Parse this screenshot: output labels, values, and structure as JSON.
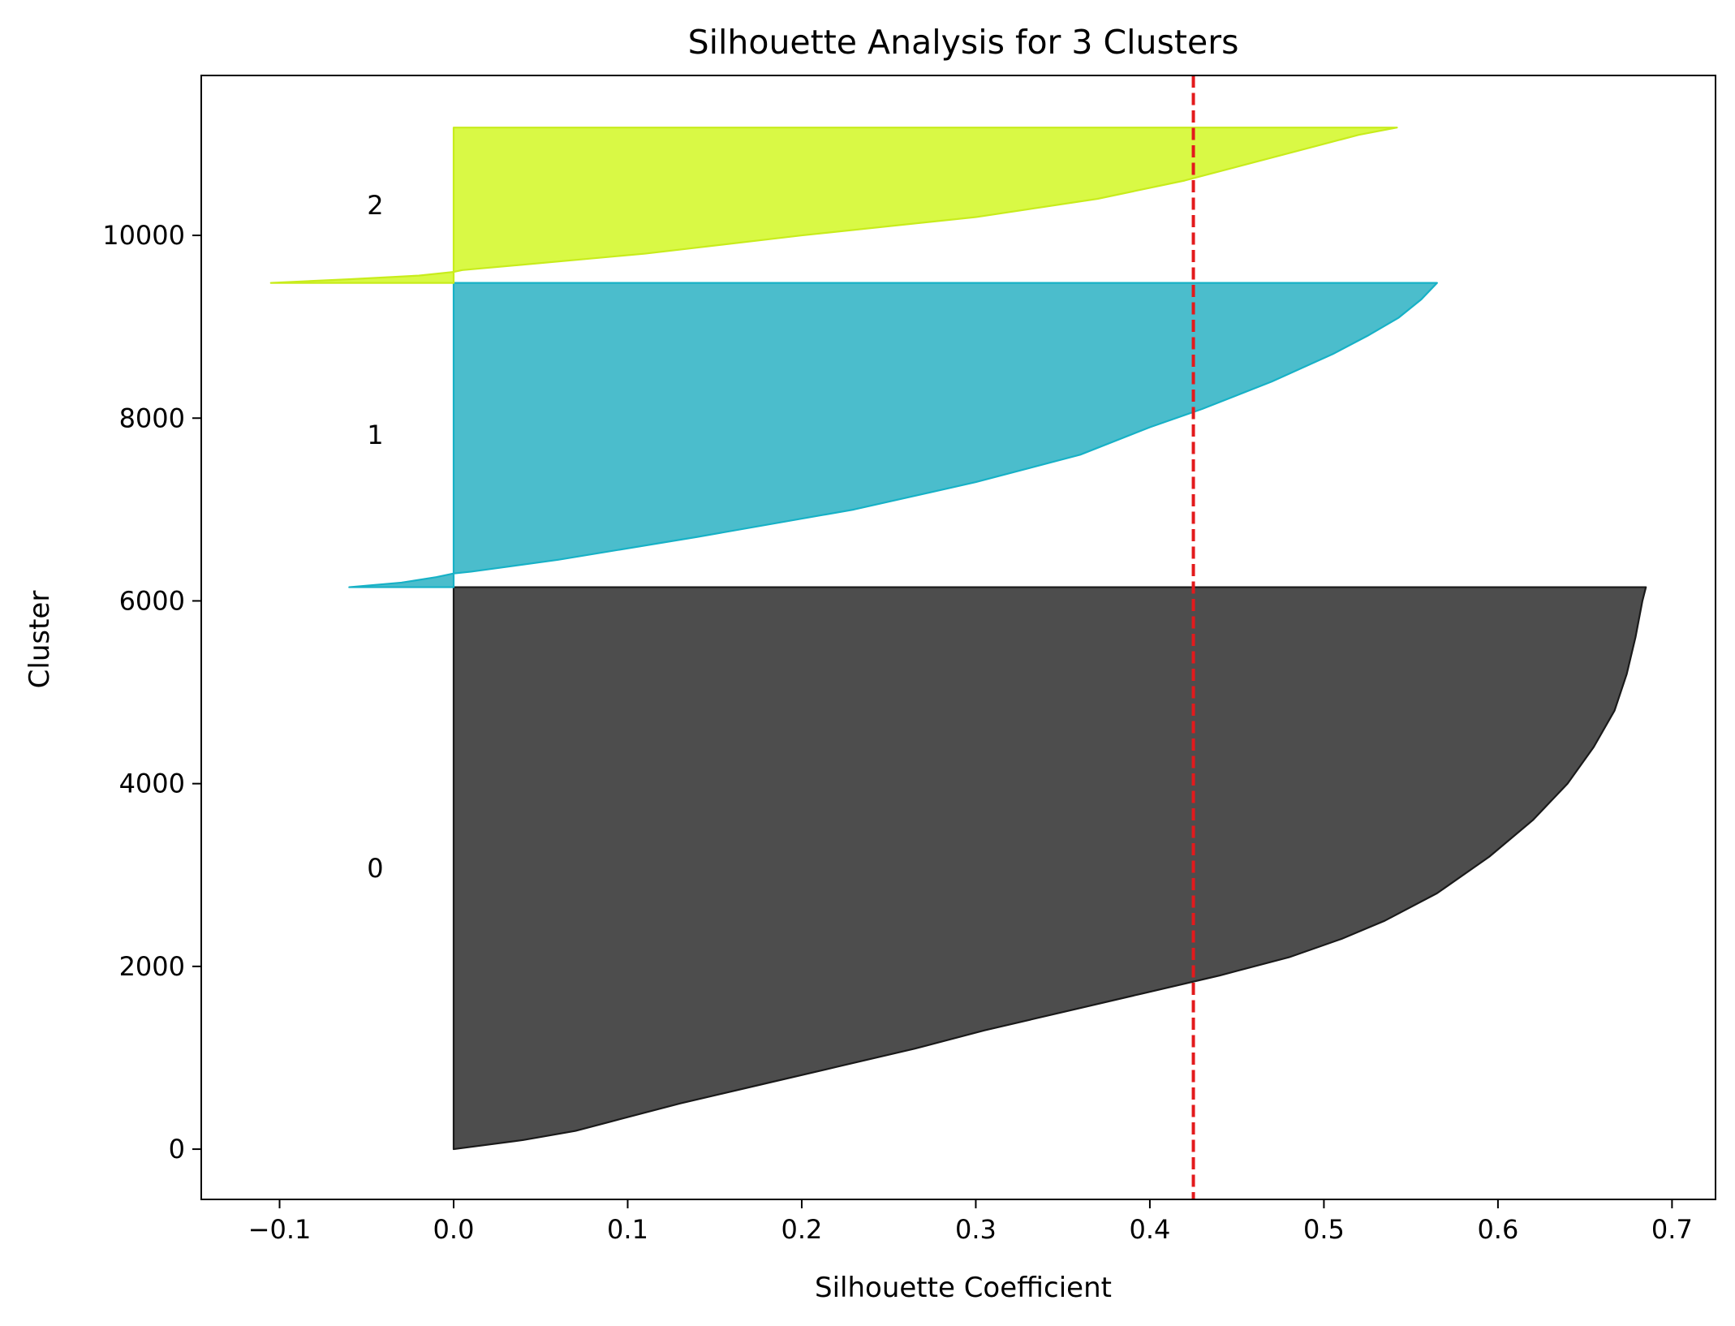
{
  "chart_data": {
    "type": "area",
    "title": "Silhouette Analysis for 3 Clusters",
    "xlabel": "Silhouette Coefficient",
    "ylabel": "Cluster",
    "xlim": [
      -0.145,
      0.725
    ],
    "ylim": [
      -550,
      11750
    ],
    "x_ticks": [
      -0.1,
      0.0,
      0.1,
      0.2,
      0.3,
      0.4,
      0.5,
      0.6,
      0.7
    ],
    "x_tick_labels": [
      "−0.1",
      "0.0",
      "0.1",
      "0.2",
      "0.3",
      "0.4",
      "0.5",
      "0.6",
      "0.7"
    ],
    "y_ticks": [
      0,
      2000,
      4000,
      6000,
      8000,
      10000
    ],
    "y_tick_labels": [
      "0",
      "2000",
      "4000",
      "6000",
      "8000",
      "10000"
    ],
    "grid": false,
    "reference_line": {
      "x": 0.425,
      "style": "dashed",
      "color": "#e31a1c"
    },
    "clusters": [
      {
        "label": "0",
        "y_lower": 0,
        "y_upper": 6150,
        "label_x": -0.045,
        "color": "#4d4d4d",
        "edge_color": "#1a1a1a",
        "profile": [
          [
            0,
            0.0
          ],
          [
            100,
            0.04
          ],
          [
            200,
            0.07
          ],
          [
            300,
            0.09
          ],
          [
            500,
            0.13
          ],
          [
            700,
            0.175
          ],
          [
            900,
            0.22
          ],
          [
            1100,
            0.265
          ],
          [
            1300,
            0.305
          ],
          [
            1500,
            0.35
          ],
          [
            1700,
            0.395
          ],
          [
            1900,
            0.44
          ],
          [
            2100,
            0.48
          ],
          [
            2300,
            0.51
          ],
          [
            2500,
            0.535
          ],
          [
            2800,
            0.565
          ],
          [
            3200,
            0.595
          ],
          [
            3600,
            0.62
          ],
          [
            4000,
            0.64
          ],
          [
            4400,
            0.655
          ],
          [
            4800,
            0.667
          ],
          [
            5200,
            0.674
          ],
          [
            5600,
            0.679
          ],
          [
            6000,
            0.683
          ],
          [
            6150,
            0.685
          ]
        ]
      },
      {
        "label": "1",
        "y_lower": 6150,
        "y_upper": 9480,
        "label_x": -0.045,
        "color": "#4bbdcc",
        "edge_color": "#17b1c6",
        "profile": [
          [
            6150,
            -0.06
          ],
          [
            6200,
            -0.03
          ],
          [
            6260,
            -0.01
          ],
          [
            6300,
            0.0
          ],
          [
            6320,
            0.01
          ],
          [
            6450,
            0.06
          ],
          [
            6700,
            0.14
          ],
          [
            7000,
            0.23
          ],
          [
            7300,
            0.3
          ],
          [
            7600,
            0.36
          ],
          [
            7900,
            0.4
          ],
          [
            8100,
            0.43
          ],
          [
            8400,
            0.47
          ],
          [
            8700,
            0.505
          ],
          [
            8900,
            0.525
          ],
          [
            9100,
            0.543
          ],
          [
            9300,
            0.556
          ],
          [
            9480,
            0.565
          ]
        ]
      },
      {
        "label": "2",
        "y_lower": 9480,
        "y_upper": 11180,
        "label_x": -0.045,
        "color": "#d9f945",
        "edge_color": "#c8ec1c",
        "profile": [
          [
            9480,
            -0.105
          ],
          [
            9520,
            -0.06
          ],
          [
            9560,
            -0.02
          ],
          [
            9600,
            0.0
          ],
          [
            9620,
            0.005
          ],
          [
            9800,
            0.11
          ],
          [
            10000,
            0.2
          ],
          [
            10200,
            0.3
          ],
          [
            10400,
            0.37
          ],
          [
            10600,
            0.42
          ],
          [
            10800,
            0.46
          ],
          [
            11000,
            0.5
          ],
          [
            11100,
            0.52
          ],
          [
            11180,
            0.542
          ]
        ]
      }
    ]
  }
}
